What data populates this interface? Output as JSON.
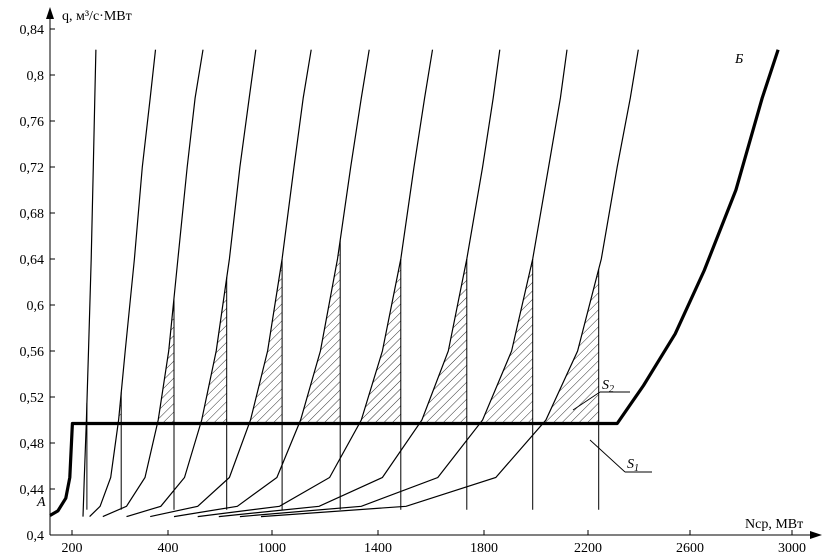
{
  "chart_data": {
    "type": "line",
    "ylabel": "q, м³/с·МВт",
    "xlabel": "Nср, МВт",
    "xlim": [
      180,
      3080
    ],
    "ylim": [
      0.4,
      0.84
    ],
    "x_ticks": [
      "200",
      "400",
      "1000",
      "1400",
      "1800",
      "2200",
      "2600",
      "3000"
    ],
    "y_ticks": [
      "0,4",
      "0,44",
      "0,48",
      "0,52",
      "0,56",
      "0,6",
      "0,64",
      "0,68",
      "0,72",
      "0,76",
      "0,8",
      "0,84"
    ],
    "labels": {
      "A": "А",
      "B": "Б",
      "S1": "S",
      "S1_sub": "1",
      "S2": "S",
      "S2_sub": "2"
    },
    "level_q": 0.497,
    "envelope": [
      [
        180,
        0.417
      ],
      [
        210,
        0.421
      ],
      [
        240,
        0.432
      ],
      [
        255,
        0.45
      ],
      [
        265,
        0.497
      ],
      [
        2330,
        0.497
      ],
      [
        2430,
        0.53
      ],
      [
        2550,
        0.575
      ],
      [
        2660,
        0.63
      ],
      [
        2780,
        0.7
      ],
      [
        2880,
        0.78
      ],
      [
        2940,
        0.822
      ]
    ],
    "curves": [
      {
        "points": [
          [
            305,
            0.416
          ],
          [
            310,
            0.45
          ],
          [
            318,
            0.5
          ],
          [
            326,
            0.56
          ],
          [
            336,
            0.64
          ],
          [
            344,
            0.72
          ],
          [
            350,
            0.78
          ],
          [
            354,
            0.822
          ]
        ],
        "cut_x": 320
      },
      {
        "points": [
          [
            330,
            0.416
          ],
          [
            370,
            0.425
          ],
          [
            410,
            0.45
          ],
          [
            440,
            0.5
          ],
          [
            465,
            0.56
          ],
          [
            500,
            0.64
          ],
          [
            530,
            0.72
          ],
          [
            560,
            0.78
          ],
          [
            580,
            0.822
          ]
        ],
        "cut_x": 450
      },
      {
        "points": [
          [
            380,
            0.416
          ],
          [
            470,
            0.425
          ],
          [
            540,
            0.45
          ],
          [
            590,
            0.5
          ],
          [
            630,
            0.56
          ],
          [
            665,
            0.64
          ],
          [
            700,
            0.72
          ],
          [
            730,
            0.78
          ],
          [
            760,
            0.822
          ]
        ],
        "cut_x": 650
      },
      {
        "points": [
          [
            470,
            0.416
          ],
          [
            600,
            0.425
          ],
          [
            690,
            0.45
          ],
          [
            755,
            0.5
          ],
          [
            810,
            0.56
          ],
          [
            860,
            0.64
          ],
          [
            900,
            0.72
          ],
          [
            935,
            0.78
          ],
          [
            960,
            0.822
          ]
        ],
        "cut_x": 850
      },
      {
        "points": [
          [
            560,
            0.416
          ],
          [
            740,
            0.425
          ],
          [
            860,
            0.45
          ],
          [
            940,
            0.5
          ],
          [
            1005,
            0.56
          ],
          [
            1060,
            0.64
          ],
          [
            1105,
            0.72
          ],
          [
            1140,
            0.78
          ],
          [
            1170,
            0.822
          ]
        ],
        "cut_x": 1060
      },
      {
        "points": [
          [
            650,
            0.416
          ],
          [
            890,
            0.425
          ],
          [
            1040,
            0.45
          ],
          [
            1130,
            0.5
          ],
          [
            1205,
            0.56
          ],
          [
            1270,
            0.64
          ],
          [
            1320,
            0.72
          ],
          [
            1360,
            0.78
          ],
          [
            1390,
            0.822
          ]
        ],
        "cut_x": 1280
      },
      {
        "points": [
          [
            740,
            0.416
          ],
          [
            1050,
            0.425
          ],
          [
            1240,
            0.45
          ],
          [
            1360,
            0.5
          ],
          [
            1440,
            0.56
          ],
          [
            1510,
            0.64
          ],
          [
            1560,
            0.72
          ],
          [
            1600,
            0.78
          ],
          [
            1630,
            0.822
          ]
        ],
        "cut_x": 1510
      },
      {
        "points": [
          [
            820,
            0.416
          ],
          [
            1200,
            0.425
          ],
          [
            1440,
            0.45
          ],
          [
            1590,
            0.5
          ],
          [
            1690,
            0.56
          ],
          [
            1760,
            0.64
          ],
          [
            1820,
            0.72
          ],
          [
            1860,
            0.78
          ],
          [
            1885,
            0.822
          ]
        ],
        "cut_x": 1760
      },
      {
        "points": [
          [
            900,
            0.416
          ],
          [
            1360,
            0.425
          ],
          [
            1650,
            0.45
          ],
          [
            1820,
            0.5
          ],
          [
            1930,
            0.56
          ],
          [
            2010,
            0.64
          ],
          [
            2070,
            0.72
          ],
          [
            2115,
            0.78
          ],
          [
            2140,
            0.822
          ]
        ],
        "cut_x": 2010
      },
      {
        "points": [
          [
            980,
            0.416
          ],
          [
            1530,
            0.425
          ],
          [
            1870,
            0.45
          ],
          [
            2060,
            0.5
          ],
          [
            2180,
            0.56
          ],
          [
            2270,
            0.64
          ],
          [
            2330,
            0.72
          ],
          [
            2380,
            0.78
          ],
          [
            2410,
            0.822
          ]
        ],
        "cut_x": 2260
      }
    ]
  }
}
